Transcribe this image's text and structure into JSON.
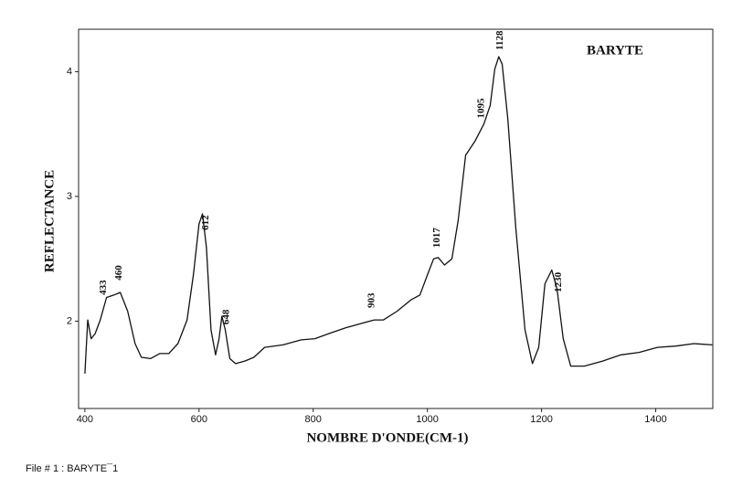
{
  "chart_data": {
    "type": "line",
    "title": "BARYTE",
    "x_label": "NOMBRE D'ONDE(CM-1)",
    "y_label": "REFLECTANCE",
    "x": [
      400,
      405,
      411,
      418,
      427,
      438,
      451,
      462,
      475,
      488,
      499,
      515,
      531,
      547,
      563,
      579,
      590,
      600,
      606,
      613,
      621,
      629,
      635,
      640,
      646,
      654,
      664,
      680,
      696,
      715,
      747,
      779,
      803,
      827,
      859,
      891,
      907,
      923,
      947,
      971,
      987,
      1000,
      1011,
      1019,
      1030,
      1043,
      1054,
      1067,
      1083,
      1099,
      1110,
      1118,
      1125,
      1131,
      1141,
      1155,
      1171,
      1184,
      1195,
      1206,
      1218,
      1227,
      1238,
      1251,
      1275,
      1307,
      1339,
      1371,
      1403,
      1435,
      1467,
      1499
    ],
    "values": [
      1.58,
      2.01,
      1.86,
      1.9,
      2.01,
      2.19,
      2.21,
      2.23,
      2.08,
      1.82,
      1.71,
      1.7,
      1.74,
      1.74,
      1.82,
      2.01,
      2.37,
      2.78,
      2.86,
      2.59,
      1.93,
      1.73,
      1.86,
      2.04,
      1.93,
      1.7,
      1.66,
      1.68,
      1.71,
      1.79,
      1.81,
      1.85,
      1.86,
      1.9,
      1.95,
      1.99,
      2.01,
      2.01,
      2.08,
      2.17,
      2.21,
      2.37,
      2.5,
      2.51,
      2.45,
      2.5,
      2.81,
      3.33,
      3.44,
      3.58,
      3.73,
      4.02,
      4.12,
      4.06,
      3.62,
      2.74,
      1.93,
      1.66,
      1.79,
      2.3,
      2.41,
      2.26,
      1.86,
      1.64,
      1.64,
      1.68,
      1.73,
      1.75,
      1.79,
      1.8,
      1.82,
      1.81
    ],
    "color": "#111111",
    "peak_labels": [
      433,
      460,
      612,
      648,
      903,
      1017,
      1095,
      1128,
      1230
    ],
    "xlim": [
      389,
      1500
    ],
    "ylim": [
      1.3,
      4.34
    ],
    "xticks": [
      400,
      600,
      800,
      1000,
      1200,
      1400
    ],
    "yticks": [
      2,
      3,
      4
    ]
  },
  "footer": "File # 1 : BARYTE¯1"
}
